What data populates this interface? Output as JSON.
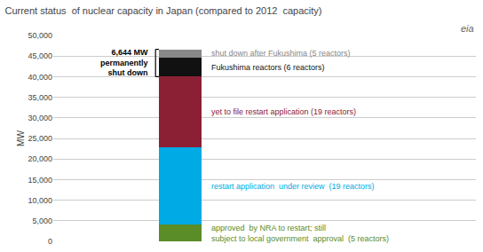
{
  "chart_data": {
    "type": "bar",
    "stacked": true,
    "title": "Current status  of nuclear capacity in Japan (compared to 2012  capacity)",
    "ylabel": "MW",
    "categories": [
      null
    ],
    "series": [
      {
        "name": "approved  by NRA to restart; still\nsubject to local government  approval  (5 reactors)",
        "color": "#5a8c28",
        "values": [
          4000
        ]
      },
      {
        "name": "restart application  under review  (19 reactors)",
        "color": "#00aae4",
        "values": [
          18800
        ]
      },
      {
        "name": "yet to file restart application (19 reactors)",
        "color": "#8b2035",
        "values": [
          17200
        ]
      },
      {
        "name": "Fukushima reactors (6 reactors)",
        "color": "#111111",
        "values": [
          4600
        ]
      },
      {
        "name": "shut down after Fukushima (5 reactors)",
        "color": "#888888",
        "values": [
          2044
        ]
      }
    ],
    "annotations": [
      "6,644 MW\npermanently\nshut down",
      "eia"
    ],
    "ylim": [
      0,
      50000
    ],
    "yticks": [
      0,
      {
        "value": 5000,
        "label": "5,000"
      },
      {
        "value": 10000,
        "label": "10,000"
      },
      {
        "value": 15000,
        "label": "15,000"
      },
      {
        "value": 20000,
        "label": "20,000"
      },
      {
        "value": 25000,
        "label": "25,000"
      },
      {
        "value": 30000,
        "label": "30,000"
      },
      {
        "value": 35000,
        "label": "35,000"
      },
      {
        "value": 40000,
        "label": "40,000"
      },
      {
        "value": 45000,
        "label": "45,000"
      },
      {
        "value": 50000,
        "label": "50,000"
      }
    ],
    "grid": true,
    "tick_labels": "y"
  }
}
